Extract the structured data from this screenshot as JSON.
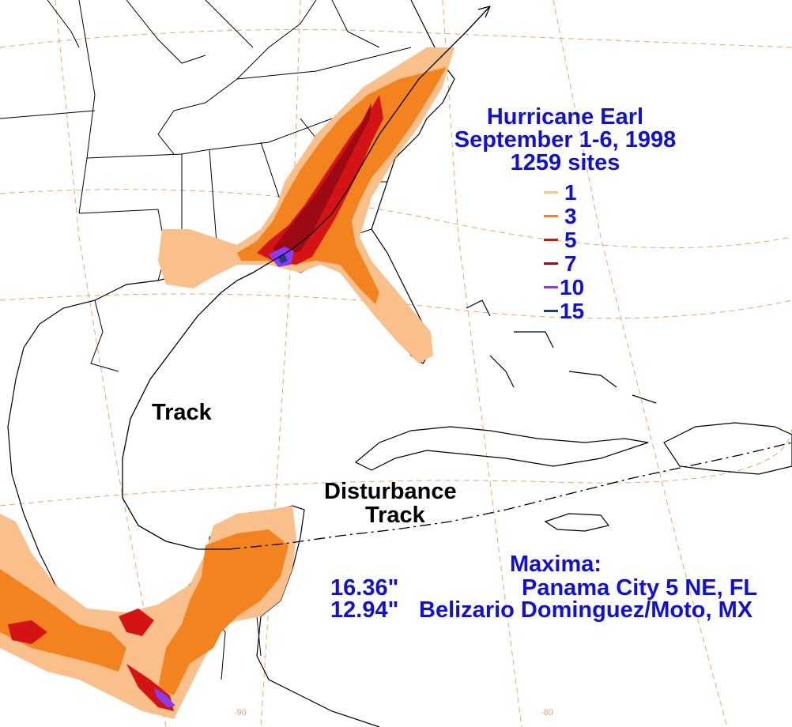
{
  "title": {
    "storm": "Hurricane Earl",
    "dates": "September 1-6, 1998",
    "sites": "1259 sites"
  },
  "legend": {
    "items": [
      {
        "label": "1",
        "color": "#f9c08c"
      },
      {
        "label": "3",
        "color": "#f2831e"
      },
      {
        "label": "5",
        "color": "#d41414"
      },
      {
        "label": "7",
        "color": "#9e0a14"
      },
      {
        "label": "10",
        "color": "#8a3cf0"
      },
      {
        "label": "15",
        "color": "#1e3c8c"
      }
    ]
  },
  "labels": {
    "track": "Track",
    "disturbance": "Disturbance",
    "disturbance_track": "Track"
  },
  "maxima": {
    "heading": "Maxima:",
    "rows": [
      {
        "value": "16.36\"",
        "location": "Panama City 5 NE, FL"
      },
      {
        "value": "12.94\"",
        "location": "Belizario Dominguez/Moto, MX"
      }
    ]
  },
  "gridlines": {
    "lon_labels": [
      "-90",
      "-80"
    ]
  },
  "colors": {
    "land": "#ffffff",
    "coast": "#000000",
    "grid": "#e9a76a",
    "text": "#1010d8"
  }
}
